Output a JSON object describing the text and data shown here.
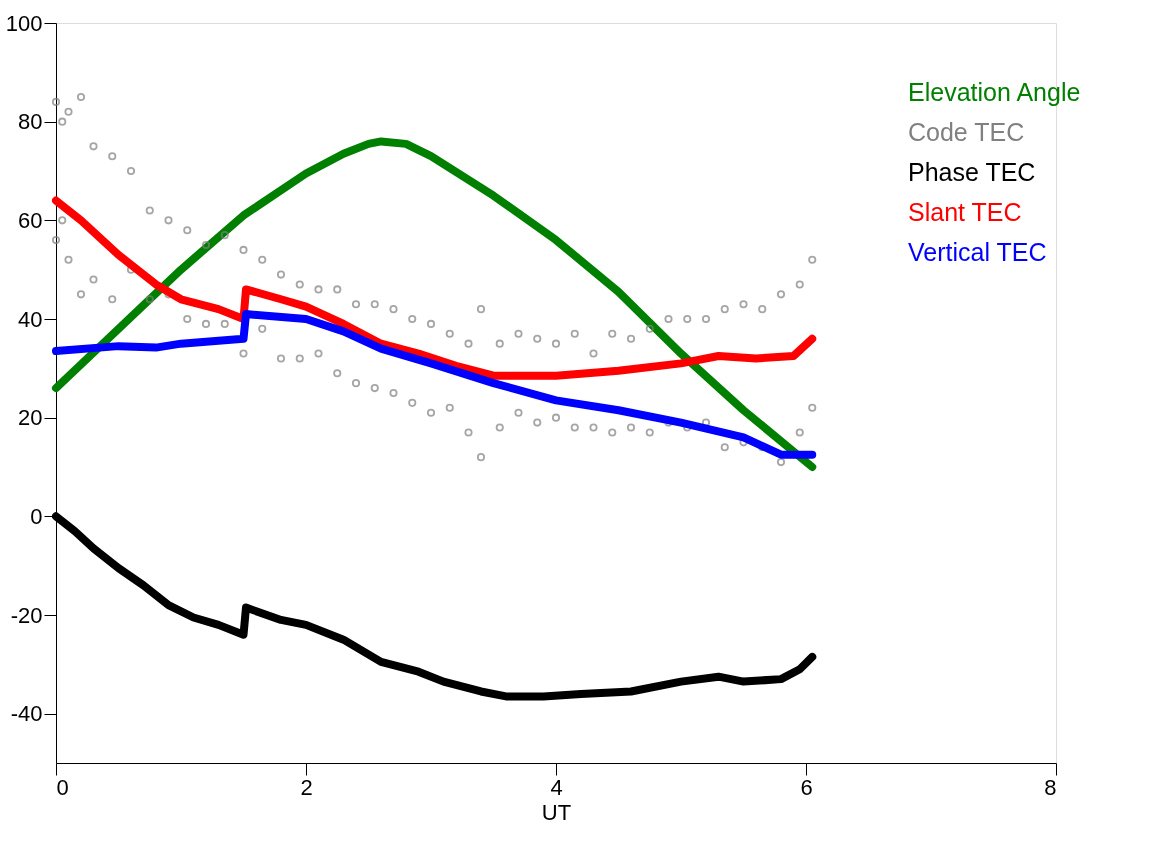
{
  "chart_data": {
    "type": "line",
    "xlabel": "UT",
    "xlim": [
      0,
      8
    ],
    "xticks": [
      0,
      2,
      4,
      6,
      8
    ],
    "ylim": [
      -50,
      100
    ],
    "yticks": [
      -40,
      -20,
      0,
      20,
      40,
      60,
      80,
      100
    ],
    "grid": false,
    "legend": "top right",
    "line_style": "solid",
    "series": [
      {
        "name": "Elevation Angle",
        "color": "#007f00",
        "x": [
          0,
          0.5,
          1,
          1.5,
          2,
          2.3,
          2.5,
          2.6,
          2.8,
          3,
          3.5,
          4,
          4.5,
          5,
          5.5,
          6.05
        ],
        "values": [
          26,
          38,
          50,
          61,
          69.5,
          73.5,
          75.5,
          76,
          75.5,
          73,
          65,
          56,
          45.5,
          33,
          21.5,
          10
        ]
      },
      {
        "name": "Code TEC",
        "color": "#808080",
        "type": "scatter",
        "marker": "circle",
        "x": [
          0,
          0,
          0.05,
          0.05,
          0.1,
          0.1,
          0.2,
          0.2,
          0.3,
          0.3,
          0.45,
          0.45,
          0.6,
          0.6,
          0.75,
          0.75,
          0.9,
          0.9,
          1.05,
          1.05,
          1.2,
          1.2,
          1.35,
          1.35,
          1.5,
          1.5,
          1.65,
          1.65,
          1.8,
          1.8,
          1.95,
          1.95,
          2.1,
          2.1,
          2.25,
          2.25,
          2.4,
          2.4,
          2.55,
          2.55,
          2.7,
          2.7,
          2.85,
          2.85,
          3.0,
          3.0,
          3.15,
          3.15,
          3.3,
          3.3,
          3.4,
          3.4,
          3.55,
          3.55,
          3.7,
          3.7,
          3.85,
          3.85,
          4.0,
          4.0,
          4.15,
          4.15,
          4.3,
          4.3,
          4.45,
          4.45,
          4.6,
          4.6,
          4.75,
          4.75,
          4.9,
          4.9,
          5.05,
          5.05,
          5.2,
          5.2,
          5.35,
          5.35,
          5.5,
          5.5,
          5.65,
          5.65,
          5.8,
          5.8,
          5.95,
          5.95,
          6.05,
          6.05
        ],
        "values": [
          56,
          84,
          60,
          80,
          52,
          82,
          45,
          85,
          48,
          75,
          44,
          73,
          50,
          70,
          44,
          62,
          45,
          60,
          40,
          58,
          39,
          55,
          39,
          57,
          33,
          54,
          38,
          52,
          32,
          49,
          32,
          47,
          33,
          46,
          29,
          46,
          27,
          43,
          26,
          43,
          25,
          42,
          23,
          40,
          21,
          39,
          22,
          37,
          17,
          35,
          12,
          42,
          18,
          35,
          21,
          37,
          19,
          36,
          20,
          35,
          18,
          37,
          18,
          33,
          17,
          37,
          18,
          36,
          17,
          38,
          19,
          40,
          18,
          40,
          19,
          40,
          14,
          42,
          15,
          43,
          14,
          42,
          11,
          45,
          17,
          47,
          22,
          52
        ]
      },
      {
        "name": "Phase TEC",
        "color": "#000000",
        "x": [
          0,
          0.15,
          0.3,
          0.5,
          0.7,
          0.9,
          1.1,
          1.3,
          1.5,
          1.52,
          1.8,
          2,
          2.3,
          2.6,
          2.9,
          3.1,
          3.4,
          3.6,
          3.9,
          4.2,
          4.6,
          5,
          5.3,
          5.5,
          5.8,
          5.95,
          6.05
        ],
        "values": [
          0,
          -3,
          -6.5,
          -10.5,
          -14,
          -18,
          -20.5,
          -22,
          -24,
          -18.5,
          -21,
          -22,
          -25,
          -29.5,
          -31.5,
          -33.5,
          -35.5,
          -36.5,
          -36.5,
          -36,
          -35.5,
          -33.5,
          -32.5,
          -33.5,
          -33,
          -31,
          -28.5
        ]
      },
      {
        "name": "Slant TEC",
        "color": "#ff0000",
        "x": [
          0,
          0.2,
          0.5,
          0.8,
          1,
          1.3,
          1.5,
          1.52,
          1.8,
          2,
          2.3,
          2.6,
          2.9,
          3.2,
          3.5,
          4,
          4.5,
          5,
          5.3,
          5.6,
          5.9,
          6.05
        ],
        "values": [
          64,
          60,
          53,
          47,
          44,
          42,
          40,
          46,
          44,
          42.5,
          39,
          35,
          33,
          30.5,
          28.5,
          28.5,
          29.5,
          31,
          32.5,
          32,
          32.5,
          36
        ]
      },
      {
        "name": "Vertical TEC",
        "color": "#0000ff",
        "x": [
          0,
          0.5,
          0.8,
          1,
          1.5,
          1.52,
          2,
          2.3,
          2.6,
          3,
          3.5,
          4,
          4.5,
          5,
          5.5,
          5.8,
          6.05
        ],
        "values": [
          33.5,
          34.5,
          34.2,
          35,
          36,
          41,
          40,
          37.5,
          34,
          31,
          27,
          23.5,
          21.5,
          19,
          16,
          12.5,
          12.5
        ]
      }
    ]
  }
}
